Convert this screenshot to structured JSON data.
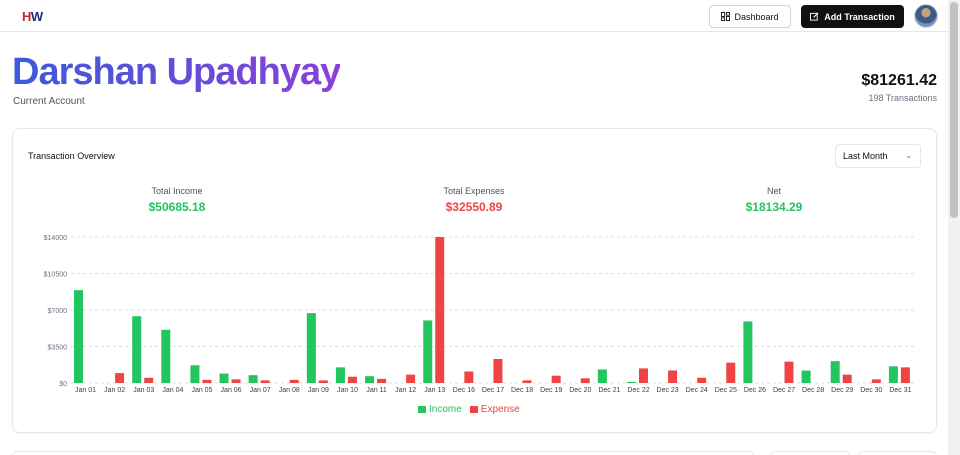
{
  "header": {
    "logo_h": "H",
    "logo_w": "W",
    "dashboard_label": "Dashboard",
    "add_transaction_label": "Add Transaction"
  },
  "account": {
    "name": "Darshan Upadhyay",
    "type": "Current Account",
    "balance": "$81261.42",
    "transactions": "198 Transactions"
  },
  "overview": {
    "title": "Transaction Overview",
    "range": "Last Month",
    "income_label": "Total Income",
    "income_value": "$50685.18",
    "expenses_label": "Total Expenses",
    "expenses_value": "$32550.89",
    "net_label": "Net",
    "net_value": "$18134.29",
    "colors": {
      "income": "#22c55e",
      "expense": "#ef4444"
    }
  },
  "chart_data": {
    "type": "bar",
    "categories": [
      "Jan 01",
      "Jan 02",
      "Jan 03",
      "Jan 04",
      "Jan 05",
      "Jan 06",
      "Jan 07",
      "Jan 08",
      "Jan 09",
      "Jan 10",
      "Jan 11",
      "Jan 12",
      "Jan 13",
      "Dec 16",
      "Dec 17",
      "Dec 18",
      "Dec 19",
      "Dec 20",
      "Dec 21",
      "Dec 22",
      "Dec 23",
      "Dec 24",
      "Dec 25",
      "Dec 26",
      "Dec 27",
      "Dec 28",
      "Dec 29",
      "Dec 30",
      "Dec 31"
    ],
    "series": [
      {
        "name": "Income",
        "color": "#22c55e",
        "values": [
          8900,
          0,
          6400,
          5100,
          1700,
          900,
          750,
          0,
          6700,
          1500,
          650,
          0,
          6000,
          0,
          0,
          0,
          0,
          0,
          1300,
          100,
          0,
          0,
          0,
          5900,
          0,
          1200,
          2100,
          0,
          1600
        ]
      },
      {
        "name": "Expense",
        "color": "#ef4444",
        "values": [
          0,
          950,
          500,
          0,
          300,
          350,
          250,
          300,
          250,
          600,
          400,
          800,
          14000,
          1100,
          2300,
          250,
          700,
          450,
          0,
          1400,
          1200,
          500,
          1950,
          0,
          2050,
          0,
          800,
          350,
          1500
        ]
      }
    ],
    "yticks": [
      "$0",
      "$3500",
      "$7000",
      "$10500",
      "$14000"
    ],
    "ylim": [
      0,
      14000
    ],
    "grid": true,
    "legend": "bottom-center"
  }
}
